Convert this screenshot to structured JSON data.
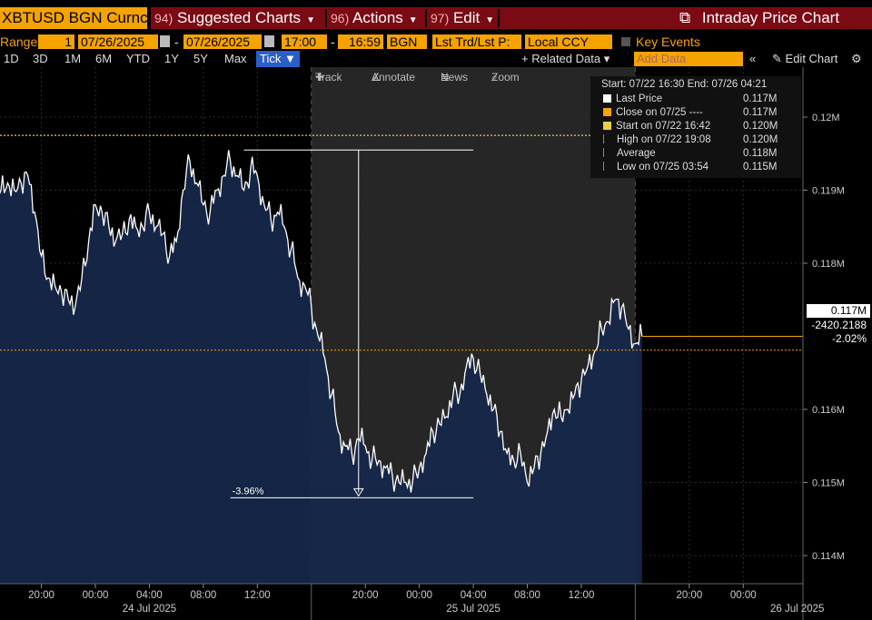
{
  "ticker": "XBTUSD BGN Curncy",
  "menu": [
    {
      "num": "94)",
      "label": "Suggested Charts"
    },
    {
      "num": "96)",
      "label": "Actions"
    },
    {
      "num": "97)",
      "label": "Edit"
    }
  ],
  "window_title": "Intraday Price Chart",
  "params": {
    "range_label": "Range",
    "range_value": "1",
    "start_date": "07/26/2025",
    "dash": "-",
    "end_date": "07/26/2025",
    "start_time": "17:00",
    "end_time": "16:59",
    "source": "BGN",
    "field": "Lst Trd/Lst P:",
    "currency": "Local CCY",
    "key_events": "Key Events"
  },
  "ranges": [
    "1D",
    "3D",
    "1M",
    "6M",
    "YTD",
    "1Y",
    "5Y",
    "Max"
  ],
  "tick_label": "Tick ▼",
  "related_data": "+ Related Data ▾",
  "add_data": "Add Data",
  "edit_chart": "Edit Chart",
  "tools": [
    "Track",
    "Annotate",
    "News",
    "Zoom"
  ],
  "legend": {
    "range_text": "Start: 07/22 16:30 End: 07/26 04:21",
    "rows": [
      {
        "label": "Last Price",
        "value": "0.117M",
        "color": "#ffffff"
      },
      {
        "label": "Close on 07/25 ----",
        "value": "0.117M",
        "color": "#f5a300"
      },
      {
        "label": "Start on 07/22 16:42",
        "value": "0.120M",
        "color": "#e8d040"
      },
      {
        "label": "High on 07/22 19:08",
        "value": "0.120M",
        "color": ""
      },
      {
        "label": "Average",
        "value": "0.118M",
        "color": ""
      },
      {
        "label": "Low on 07/25 03:54",
        "value": "0.115M",
        "color": ""
      }
    ]
  },
  "price_box": {
    "last": "0.117M",
    "change": "-2420.2188",
    "pct": "-2.02%"
  },
  "drawdown_label": "-3.96%",
  "colors": {
    "area": "#15274a",
    "line": "#ffffff",
    "close": "#f5a300",
    "start": "#e8d040",
    "accent": "#f5a300"
  },
  "chart_data": {
    "type": "area",
    "y_unit": "M",
    "ylim": [
      0.1135,
      0.1225
    ],
    "y_ticks": [
      0.114,
      0.115,
      0.116,
      0.117,
      0.118,
      0.119,
      0.12
    ],
    "y_tick_labels": [
      "0.114M",
      "0.115M",
      "0.116M",
      "0.117M",
      "0.118M",
      "0.119M",
      "0.12M"
    ],
    "x_tick_labels": [
      "20:00",
      "00:00",
      "04:00",
      "08:00",
      "12:00",
      "20:00",
      "00:00",
      "04:00",
      "08:00",
      "12:00",
      "20:00",
      "00:00"
    ],
    "x_day_labels": [
      "24 Jul 2025",
      "25 Jul 2025",
      "26 Jul 2025"
    ],
    "x_hours": [
      -4,
      0,
      4,
      8,
      12,
      20,
      24,
      28,
      32,
      36,
      44,
      48
    ],
    "day_hours": [
      4,
      28,
      52
    ],
    "session_breaks": [
      16,
      40
    ],
    "close_level": 0.11681,
    "start_level": 0.11975,
    "high_level": 0.11955,
    "low_level": 0.11479,
    "drawdown_pct": -3.96,
    "series": [
      {
        "name": "Last Price",
        "hours": [
          -10.3,
          -9.5,
          -9,
          -8.5,
          -8,
          -7.5,
          -7,
          -6.5,
          -6,
          -5.5,
          -5,
          -4.5,
          -4,
          -3.5,
          -3,
          -2.5,
          -2,
          -1.5,
          -1,
          -0.5,
          0,
          0.5,
          1,
          1.5,
          2,
          2.5,
          3,
          3.5,
          4,
          4.5,
          5,
          5.5,
          6,
          6.5,
          7,
          7.5,
          8,
          8.5,
          9,
          9.5,
          10,
          10.5,
          11,
          11.5,
          12,
          12.5,
          13,
          13.5,
          14,
          14.5,
          15,
          15.5,
          16,
          16.5,
          17,
          17.5,
          18,
          18.5,
          19,
          19.5,
          20,
          20.5,
          21,
          21.5,
          22,
          22.5,
          23,
          23.5,
          24,
          24.5,
          25,
          25.5,
          26,
          26.5,
          27,
          27.5,
          28,
          28.5,
          29,
          29.5,
          30,
          30.5,
          31,
          31.5,
          32,
          32.5,
          33,
          33.5,
          34,
          34.5,
          35,
          35.5,
          36,
          36.5,
          37,
          37.5,
          38,
          38.5,
          39,
          39.5,
          40,
          40.5
        ],
        "values": [
          0.1175,
          0.1183,
          0.1186,
          0.1187,
          0.119,
          0.1191,
          0.119,
          0.1191,
          0.119,
          0.1191,
          0.1192,
          0.1187,
          0.1181,
          0.1178,
          0.1177,
          0.1176,
          0.1175,
          0.1174,
          0.1178,
          0.1183,
          0.1188,
          0.1187,
          0.1185,
          0.1183,
          0.1184,
          0.1186,
          0.1185,
          0.1185,
          0.1187,
          0.1185,
          0.1184,
          0.1181,
          0.1183,
          0.119,
          0.1194,
          0.1191,
          0.1188,
          0.1187,
          0.119,
          0.1192,
          0.1194,
          0.1192,
          0.119,
          0.1193,
          0.1192,
          0.1188,
          0.1186,
          0.1187,
          0.1185,
          0.1182,
          0.1178,
          0.1177,
          0.1174,
          0.117,
          0.1167,
          0.1162,
          0.1157,
          0.1155,
          0.1154,
          0.1156,
          0.1155,
          0.1153,
          0.1153,
          0.1152,
          0.1151,
          0.115,
          0.115,
          0.115,
          0.1152,
          0.1154,
          0.1157,
          0.1158,
          0.1159,
          0.1162,
          0.1162,
          0.1166,
          0.1167,
          0.1165,
          0.1162,
          0.116,
          0.1157,
          0.1154,
          0.1153,
          0.1154,
          0.115,
          0.1152,
          0.1154,
          0.1157,
          0.116,
          0.1159,
          0.116,
          0.1162,
          0.1164,
          0.1166,
          0.1168,
          0.1171,
          0.1172,
          0.1175,
          0.1174,
          0.1171,
          0.1169,
          0.117
        ]
      }
    ]
  }
}
